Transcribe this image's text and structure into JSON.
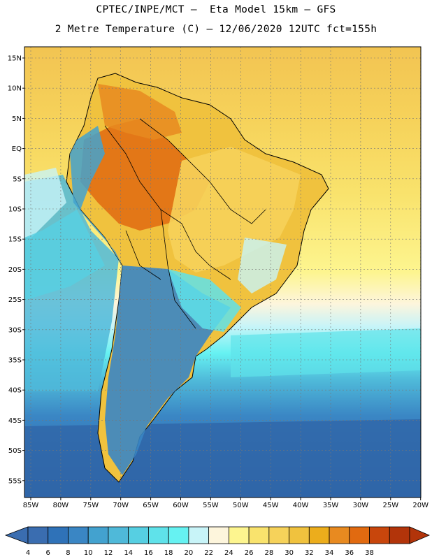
{
  "title_line1": "CPTEC/INPE/MCT –  Eta Model 15km – GFS",
  "title_line2": "2 Metre Temperature (C) – 12/06/2020 12UTC fct=155h",
  "lat_labels": [
    "15N",
    "10N",
    "5N",
    "EQ",
    "5S",
    "10S",
    "15S",
    "20S",
    "25S",
    "30S",
    "35S",
    "40S",
    "45S",
    "50S",
    "55S"
  ],
  "lon_labels": [
    "85W",
    "80W",
    "75W",
    "70W",
    "65W",
    "60W",
    "55W",
    "50W",
    "45W",
    "40W",
    "35W",
    "30W",
    "25W",
    "20W"
  ],
  "legend": {
    "tick_labels": [
      "4",
      "6",
      "8",
      "10",
      "12",
      "14",
      "16",
      "18",
      "20",
      "22",
      "24",
      "26",
      "28",
      "30",
      "32",
      "34",
      "36",
      "38"
    ],
    "colors": [
      "#3a6db0",
      "#2f72b8",
      "#3a86c4",
      "#43a2cf",
      "#4fb9d9",
      "#56cfe2",
      "#5fe2ea",
      "#66f2f2",
      "#c8f4f8",
      "#fdf5dc",
      "#fdf58f",
      "#f9e36d",
      "#f6d25a",
      "#f0c23e",
      "#ecad1c",
      "#e88a20",
      "#e16a10",
      "#c8460c",
      "#b2340a"
    ]
  }
}
